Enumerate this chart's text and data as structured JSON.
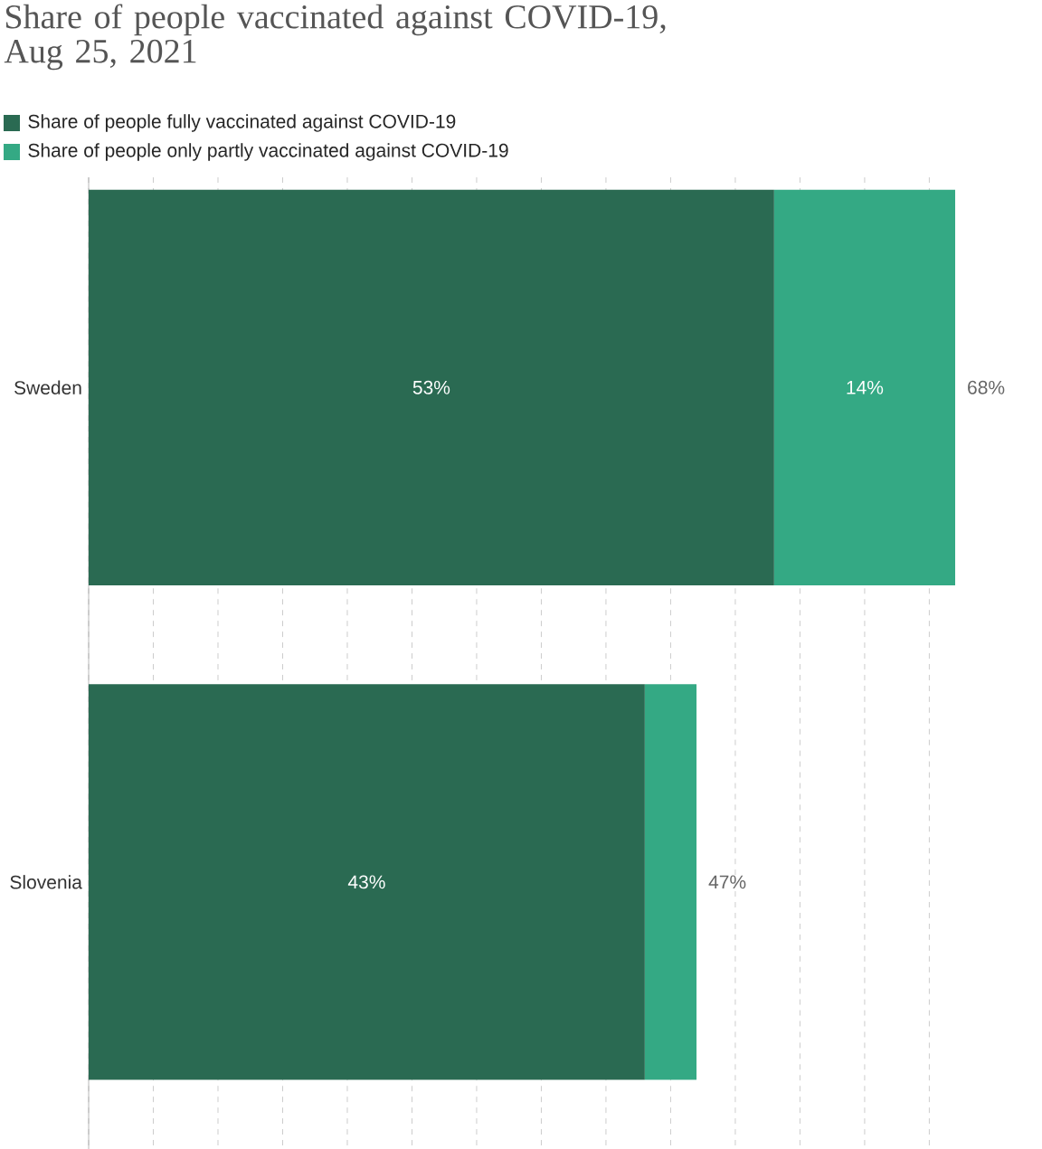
{
  "chart_data": {
    "type": "bar",
    "orientation": "horizontal",
    "stacked": true,
    "title": "Share of people vaccinated against COVID-19, Aug 25, 2021",
    "categories": [
      "Sweden",
      "Slovenia"
    ],
    "series": [
      {
        "name": "Share of people fully vaccinated against COVID-19",
        "color": "#2a6a52",
        "values": [
          53,
          43
        ],
        "value_labels": [
          "53%",
          "43%"
        ]
      },
      {
        "name": "Share of people only partly vaccinated against COVID-19",
        "color": "#34a984",
        "values": [
          14,
          4
        ],
        "value_labels": [
          "14%",
          null
        ]
      }
    ],
    "totals": [
      "68%",
      "47%"
    ],
    "grid": "x",
    "legend": "top left",
    "tick_labels": "y"
  }
}
